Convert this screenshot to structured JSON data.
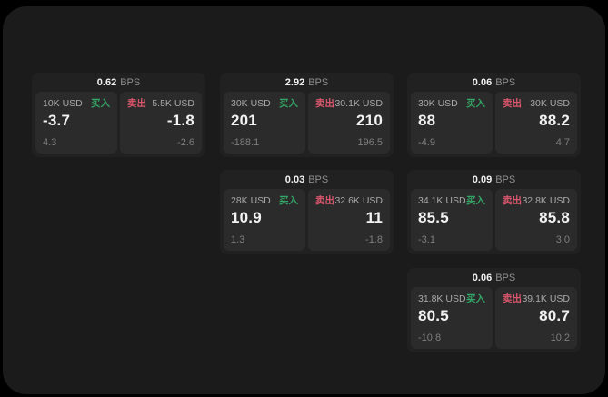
{
  "labels": {
    "bps": "BPS",
    "buy": "买入",
    "sell": "卖出"
  },
  "colors": {
    "panel_bg": "#1b1b1b",
    "card_bg": "#212121",
    "tile_bg": "#2b2b2b",
    "buy": "#33a566",
    "sell": "#d9566c",
    "value_text": "#f2f2f2",
    "label_text": "#a9a9a9",
    "sub_text": "#7e7e7e",
    "bps_label": "#8f8f8f"
  },
  "cards": [
    {
      "bps": "0.62",
      "col": 1,
      "row": 1,
      "buy": {
        "amount": "10K USD",
        "value": "-3.7",
        "sub": "4.3"
      },
      "sell": {
        "amount": "5.5K USD",
        "value": "-1.8",
        "sub": "-2.6"
      }
    },
    {
      "bps": "2.92",
      "col": 2,
      "row": 1,
      "buy": {
        "amount": "30K USD",
        "value": "201",
        "sub": "-188.1"
      },
      "sell": {
        "amount": "30.1K USD",
        "value": "210",
        "sub": "196.5"
      }
    },
    {
      "bps": "0.06",
      "col": 3,
      "row": 1,
      "buy": {
        "amount": "30K USD",
        "value": "88",
        "sub": "-4.9"
      },
      "sell": {
        "amount": "30K USD",
        "value": "88.2",
        "sub": "4.7"
      }
    },
    {
      "bps": "0.03",
      "col": 2,
      "row": 2,
      "buy": {
        "amount": "28K USD",
        "value": "10.9",
        "sub": "1.3"
      },
      "sell": {
        "amount": "32.6K USD",
        "value": "11",
        "sub": "-1.8"
      }
    },
    {
      "bps": "0.09",
      "col": 3,
      "row": 2,
      "buy": {
        "amount": "34.1K USD",
        "value": "85.5",
        "sub": "-3.1"
      },
      "sell": {
        "amount": "32.8K USD",
        "value": "85.8",
        "sub": "3.0"
      }
    },
    {
      "bps": "0.06",
      "col": 3,
      "row": 3,
      "buy": {
        "amount": "31.8K USD",
        "value": "80.5",
        "sub": "-10.8"
      },
      "sell": {
        "amount": "39.1K USD",
        "value": "80.7",
        "sub": "10.2"
      }
    }
  ]
}
